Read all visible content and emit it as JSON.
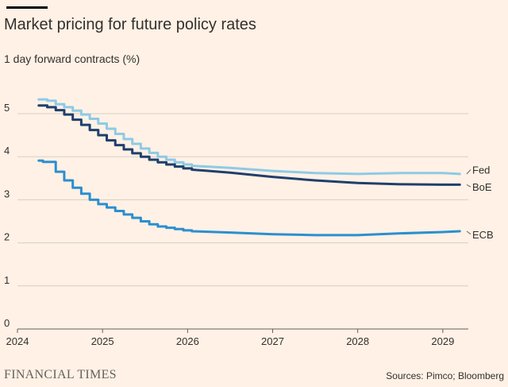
{
  "header": {
    "title": "Market pricing for future policy rates",
    "subtitle": "1 day forward contracts (%)"
  },
  "footer": {
    "brand": "FINANCIAL TIMES",
    "source": "Sources: Pimco; Bloomberg"
  },
  "colors": {
    "background": "#fff1e5",
    "grid": "#d9cec4",
    "fed": "#8ecae6",
    "boe": "#1f3f6e",
    "ecb": "#2b8fcf"
  },
  "chart_data": {
    "type": "line",
    "title": "Market pricing for future policy rates",
    "subtitle": "1 day forward contracts (%)",
    "xlabel": "",
    "ylabel": "",
    "xlim": [
      2024,
      2029.3
    ],
    "ylim": [
      0,
      5.5
    ],
    "x_ticks": [
      2024,
      2025,
      2026,
      2027,
      2028,
      2029
    ],
    "y_ticks": [
      0,
      1,
      2,
      3,
      4,
      5
    ],
    "grid": true,
    "step_until": 2026.1,
    "series": [
      {
        "name": "Fed",
        "color": "#8ecae6",
        "x": [
          2024.25,
          2024.35,
          2024.45,
          2024.55,
          2024.65,
          2024.75,
          2024.85,
          2024.95,
          2025.05,
          2025.15,
          2025.25,
          2025.35,
          2025.45,
          2025.55,
          2025.65,
          2025.75,
          2025.85,
          2025.95,
          2026.05,
          2026.5,
          2027.0,
          2027.5,
          2028.0,
          2028.5,
          2029.0,
          2029.2
        ],
        "values": [
          5.33,
          5.3,
          5.22,
          5.15,
          5.07,
          4.98,
          4.88,
          4.77,
          4.65,
          4.53,
          4.41,
          4.3,
          4.19,
          4.09,
          4.0,
          3.93,
          3.87,
          3.82,
          3.79,
          3.74,
          3.67,
          3.62,
          3.6,
          3.62,
          3.62,
          3.6
        ]
      },
      {
        "name": "BoE",
        "color": "#1f3f6e",
        "x": [
          2024.25,
          2024.35,
          2024.45,
          2024.55,
          2024.65,
          2024.75,
          2024.85,
          2024.95,
          2025.05,
          2025.15,
          2025.25,
          2025.35,
          2025.45,
          2025.55,
          2025.65,
          2025.75,
          2025.85,
          2025.95,
          2026.05,
          2026.5,
          2027.0,
          2027.5,
          2028.0,
          2028.5,
          2029.0,
          2029.2
        ],
        "values": [
          5.19,
          5.15,
          5.08,
          4.98,
          4.86,
          4.74,
          4.62,
          4.5,
          4.38,
          4.27,
          4.17,
          4.08,
          4.0,
          3.93,
          3.87,
          3.82,
          3.77,
          3.73,
          3.7,
          3.63,
          3.53,
          3.45,
          3.39,
          3.36,
          3.35,
          3.35
        ]
      },
      {
        "name": "ECB",
        "color": "#2b8fcf",
        "x": [
          2024.25,
          2024.3,
          2024.45,
          2024.55,
          2024.65,
          2024.75,
          2024.85,
          2024.95,
          2025.05,
          2025.15,
          2025.25,
          2025.35,
          2025.45,
          2025.55,
          2025.65,
          2025.75,
          2025.85,
          2025.95,
          2026.05,
          2026.5,
          2027.0,
          2027.5,
          2028.0,
          2028.5,
          2029.0,
          2029.2
        ],
        "values": [
          3.91,
          3.88,
          3.65,
          3.45,
          3.28,
          3.14,
          3.0,
          2.9,
          2.82,
          2.74,
          2.66,
          2.58,
          2.5,
          2.43,
          2.38,
          2.35,
          2.32,
          2.29,
          2.27,
          2.24,
          2.2,
          2.18,
          2.18,
          2.22,
          2.25,
          2.27
        ]
      }
    ],
    "labels": [
      {
        "series": "Fed",
        "text": "Fed",
        "y": 3.7
      },
      {
        "series": "BoE",
        "text": "BoE",
        "y": 3.3
      },
      {
        "series": "ECB",
        "text": "ECB",
        "y": 2.2
      }
    ]
  }
}
